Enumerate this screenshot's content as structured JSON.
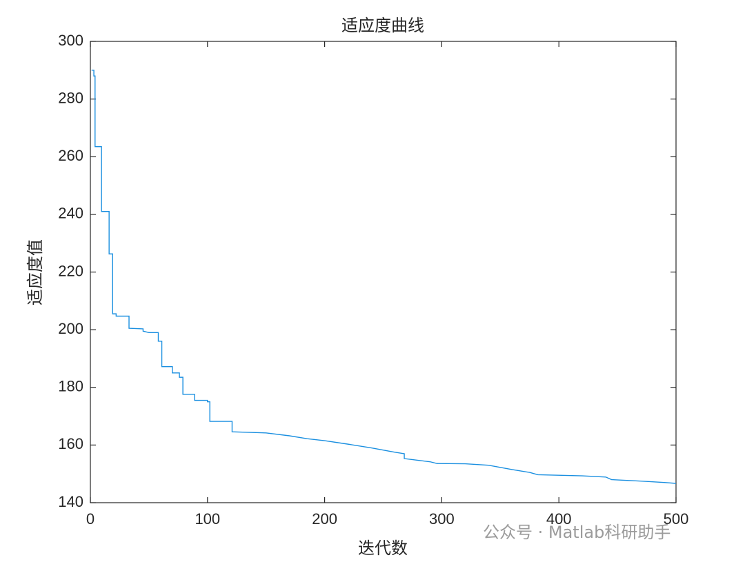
{
  "chart_data": {
    "type": "line",
    "title": "适应度曲线",
    "xlabel": "迭代数",
    "ylabel": "适应度值",
    "x": [
      1,
      3,
      3,
      4,
      4,
      9.5,
      9.5,
      16,
      16,
      19,
      19,
      22,
      22,
      33,
      33,
      45,
      45,
      50,
      57,
      58,
      58,
      61,
      61,
      70,
      70,
      76,
      76,
      79,
      79,
      89,
      89,
      100,
      100,
      102,
      102,
      121,
      121,
      150,
      170,
      185,
      200,
      220,
      240,
      260,
      268,
      268,
      290,
      296,
      320,
      340,
      360,
      375,
      382,
      420,
      440,
      445,
      470,
      490,
      500
    ],
    "series": [
      {
        "name": "适应度",
        "color": "#1a8fe0",
        "values": [
          290,
          290,
          288,
          288,
          263.5,
          263.5,
          241,
          241,
          226.3,
          226.3,
          205.5,
          205.5,
          204.7,
          204.7,
          200.5,
          200.3,
          199.5,
          199,
          199,
          199,
          196,
          196,
          187.2,
          187.2,
          185,
          185,
          183.5,
          183.5,
          177.6,
          177.6,
          175.5,
          175.5,
          175,
          175,
          168.2,
          168.2,
          164.6,
          164.2,
          163.2,
          162.2,
          161.5,
          160.3,
          159,
          157.5,
          157,
          155.3,
          154.2,
          153.6,
          153.5,
          153,
          151.5,
          150.5,
          149.7,
          149.3,
          148.9,
          148,
          147.5,
          147,
          146.7
        ]
      }
    ],
    "xlim": [
      0,
      500
    ],
    "ylim": [
      140,
      300
    ],
    "xticks": [
      0,
      100,
      200,
      300,
      400,
      500
    ],
    "yticks": [
      140,
      160,
      180,
      200,
      220,
      240,
      260,
      280,
      300
    ],
    "grid": false
  },
  "watermark": "公众号 · Matlab科研助手"
}
